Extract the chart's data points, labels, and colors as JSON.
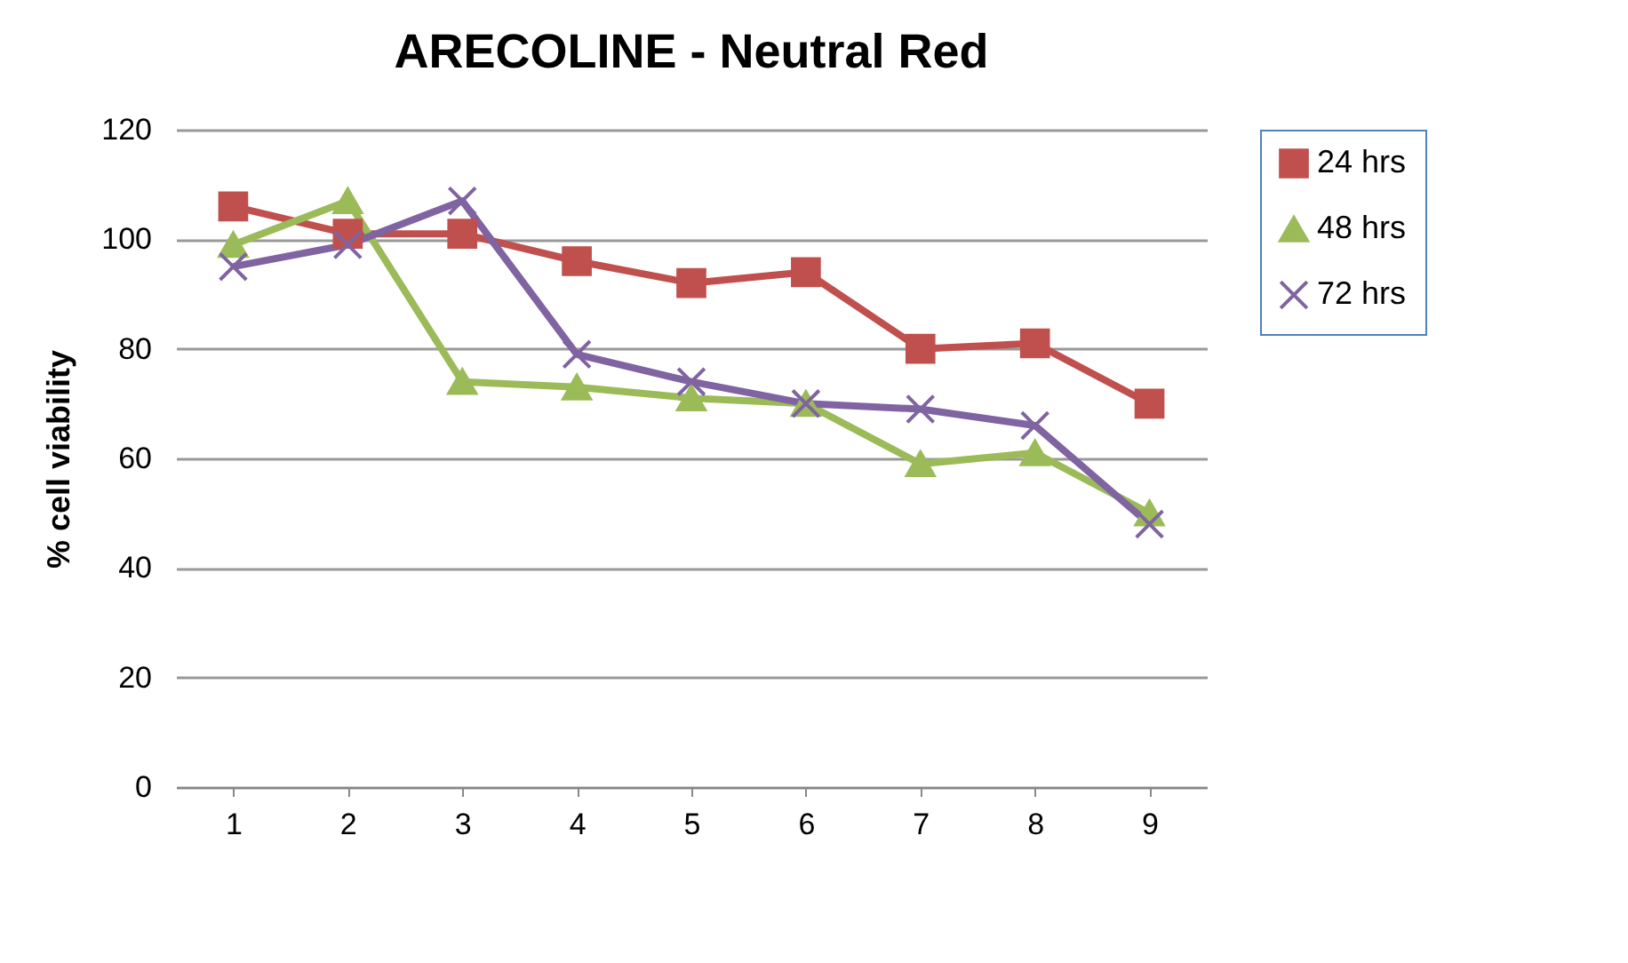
{
  "chart_data": {
    "type": "line",
    "title": "ARECOLINE - Neutral Red",
    "ylabel": "% cell viability",
    "categories": [
      "1",
      "2",
      "3",
      "4",
      "5",
      "6",
      "7",
      "8",
      "9"
    ],
    "series": [
      {
        "name": "24 hrs",
        "color": "#c0504d",
        "marker": "square",
        "values": [
          106,
          101,
          101,
          96,
          92,
          94,
          80,
          81,
          70
        ]
      },
      {
        "name": "48 hrs",
        "color": "#9bbb59",
        "marker": "triangle",
        "values": [
          99,
          107,
          74,
          73,
          71,
          70,
          59,
          61,
          50
        ]
      },
      {
        "name": "72 hrs",
        "color": "#8064a2",
        "marker": "cross",
        "values": [
          95,
          99,
          107,
          79,
          74,
          70,
          69,
          66,
          48
        ]
      }
    ],
    "ylim": [
      0,
      120
    ],
    "yticks": [
      0,
      20,
      40,
      60,
      80,
      100,
      120
    ],
    "grid": "y",
    "legend": "right",
    "line_style": "solid"
  }
}
